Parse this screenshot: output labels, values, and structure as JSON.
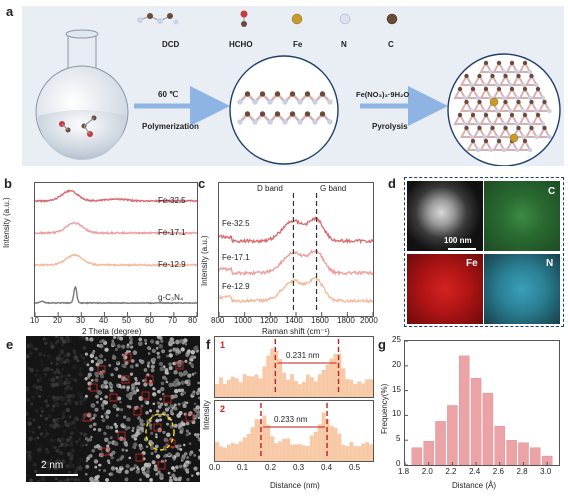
{
  "panel_labels": {
    "a": "a",
    "b": "b",
    "c": "c",
    "d": "d",
    "e": "e",
    "f": "f",
    "g": "g"
  },
  "panel_a": {
    "legend": [
      {
        "label": "DCD",
        "icon": "dcd-molecule"
      },
      {
        "label": "HCHO",
        "icon": "hcho-molecule"
      },
      {
        "label": "Fe",
        "color": "#c79a2c"
      },
      {
        "label": "N",
        "color": "#cdd3e6"
      },
      {
        "label": "C",
        "color": "#6b4a3a"
      }
    ],
    "step1_top": "60 ℃",
    "step1_bottom": "Polymerization",
    "step2_top": "Fe(NO₃)₃·9H₂O",
    "step2_bottom": "Pyrolysis",
    "colors": {
      "arrow": "#8db4e3",
      "bond": "#d9b0b0",
      "carbon": "#6b4a3a",
      "nitrogen": "#c9d0e4",
      "iron": "#c79a2c"
    }
  },
  "panel_b": {
    "xlabel": "2 Theta (degree)",
    "ylabel": "Intensity (a.u.)",
    "xticks": [
      "10",
      "20",
      "30",
      "40",
      "50",
      "60",
      "70",
      "80"
    ],
    "labels": [
      "Fe-32.5",
      "Fe-17.1",
      "Fe-12.9",
      "g-C₃N₄"
    ]
  },
  "panel_c": {
    "xlabel": "Raman shift (cm⁻¹)",
    "ylabel": "Intensity (a.u.)",
    "xticks": [
      "800",
      "1000",
      "1200",
      "1400",
      "1600",
      "1800",
      "2000"
    ],
    "labels": [
      "Fe-32.5",
      "Fe-17.1",
      "Fe-12.9"
    ],
    "dband": "D band",
    "gband": "G band"
  },
  "panel_d": {
    "scale": "100 nm",
    "maps": [
      "C",
      "Fe",
      "N"
    ],
    "colors": {
      "haadf": "#8a8a8a",
      "C": "#2f7a38",
      "Fe": "#c21b1b",
      "N": "#2a8aa0"
    }
  },
  "panel_e": {
    "scale": "2 nm"
  },
  "panel_f": {
    "xlabel": "Distance (nm)",
    "ylabel": "Intensity",
    "xticks": [
      "0.0",
      "0.1",
      "0.2",
      "0.3",
      "0.4",
      "0.5"
    ],
    "profiles": [
      {
        "index": "1",
        "distance": "0.231 nm"
      },
      {
        "index": "2",
        "distance": "0.233 nm"
      }
    ]
  },
  "chart_data": [
    {
      "type": "line",
      "xlabel": "2 Theta (degree)",
      "ylabel": "Intensity (a.u.)",
      "xlim": [
        10,
        80
      ],
      "series": [
        {
          "name": "Fe-32.5",
          "color": "#d9696c",
          "peak": 25
        },
        {
          "name": "Fe-17.1",
          "color": "#ec9d9d",
          "peak": 27
        },
        {
          "name": "Fe-12.9",
          "color": "#f3b99a",
          "peak": 27
        },
        {
          "name": "g-C₃N₄",
          "color": "#777777",
          "peak": 27.4
        }
      ]
    },
    {
      "type": "line",
      "xlabel": "Raman shift (cm⁻¹)",
      "ylabel": "Intensity (a.u.)",
      "xlim": [
        800,
        2000
      ],
      "d_band": 1380,
      "g_band": 1560,
      "series": [
        {
          "name": "Fe-32.5",
          "color": "#d9696c"
        },
        {
          "name": "Fe-17.1",
          "color": "#ec9d9d"
        },
        {
          "name": "Fe-12.9",
          "color": "#f3b99a"
        }
      ]
    },
    {
      "type": "bar",
      "xlabel": "Distance (Å)",
      "ylabel": "Frequency(%)",
      "xlim": [
        1.8,
        3.1
      ],
      "ylim": [
        0,
        25
      ],
      "xticks": [
        "1.8",
        "2.0",
        "2.2",
        "2.4",
        "2.6",
        "2.8",
        "3.0"
      ],
      "yticks": [
        "0",
        "5",
        "10",
        "15",
        "20",
        "25"
      ],
      "bar_color": "#eca3a6",
      "x": [
        1.9,
        2.0,
        2.1,
        2.2,
        2.3,
        2.4,
        2.5,
        2.6,
        2.7,
        2.8,
        2.9,
        3.0
      ],
      "values": [
        3.5,
        4.8,
        8.8,
        12.0,
        22.0,
        17.5,
        14.5,
        7.8,
        5.0,
        4.5,
        3.5,
        1.8
      ]
    }
  ]
}
